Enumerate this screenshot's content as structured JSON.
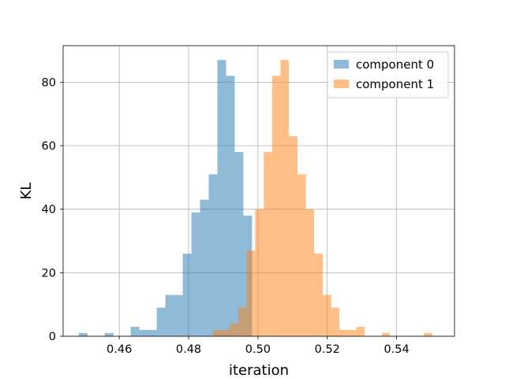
{
  "chart_data": {
    "type": "bar",
    "title": "",
    "xlabel": "iteration",
    "ylabel": "KL",
    "xlim": [
      0.4438,
      0.5567
    ],
    "ylim": [
      0,
      91.5
    ],
    "xticks": [
      0.46,
      0.48,
      0.5,
      0.52,
      0.54
    ],
    "xtick_labels": [
      "0.46",
      "0.48",
      "0.50",
      "0.52",
      "0.54"
    ],
    "yticks": [
      0,
      20,
      40,
      60,
      80
    ],
    "ytick_labels": [
      "0",
      "20",
      "40",
      "60",
      "80"
    ],
    "grid": true,
    "legend_placement": "top-right",
    "series": [
      {
        "name": "component 0",
        "color": "#1f77b4",
        "alpha": 0.5,
        "bin_edges": [
          0.4483,
          0.4508,
          0.4533,
          0.4558,
          0.4583,
          0.4608,
          0.4633,
          0.4658,
          0.4683,
          0.4708,
          0.4733,
          0.4758,
          0.4783,
          0.4808,
          0.4833,
          0.4858,
          0.4883,
          0.4908,
          0.4933,
          0.4958,
          0.4983,
          0.5008
        ],
        "counts": [
          1,
          0,
          0,
          1,
          0,
          0,
          3,
          2,
          2,
          9,
          13,
          13,
          26,
          39,
          43,
          51,
          87,
          82,
          58,
          38,
          0
        ]
      },
      {
        "name": "component 1",
        "color": "#ff7f0e",
        "alpha": 0.5,
        "bin_edges": [
          0.4871,
          0.4895,
          0.4919,
          0.4944,
          0.4968,
          0.4992,
          0.5017,
          0.5041,
          0.5065,
          0.5089,
          0.5114,
          0.5138,
          0.5162,
          0.5187,
          0.5211,
          0.5235,
          0.5259,
          0.5284,
          0.5308,
          0.5332,
          0.5357,
          0.5381,
          0.5405,
          0.5429,
          0.5454,
          0.5478,
          0.5502,
          0.5527
        ],
        "counts": [
          2,
          2,
          4,
          9,
          27,
          40,
          58,
          82,
          87,
          63,
          51,
          40,
          26,
          13,
          9,
          2,
          2,
          3,
          0,
          0,
          1,
          0,
          0,
          0,
          0,
          1,
          0
        ]
      }
    ]
  }
}
